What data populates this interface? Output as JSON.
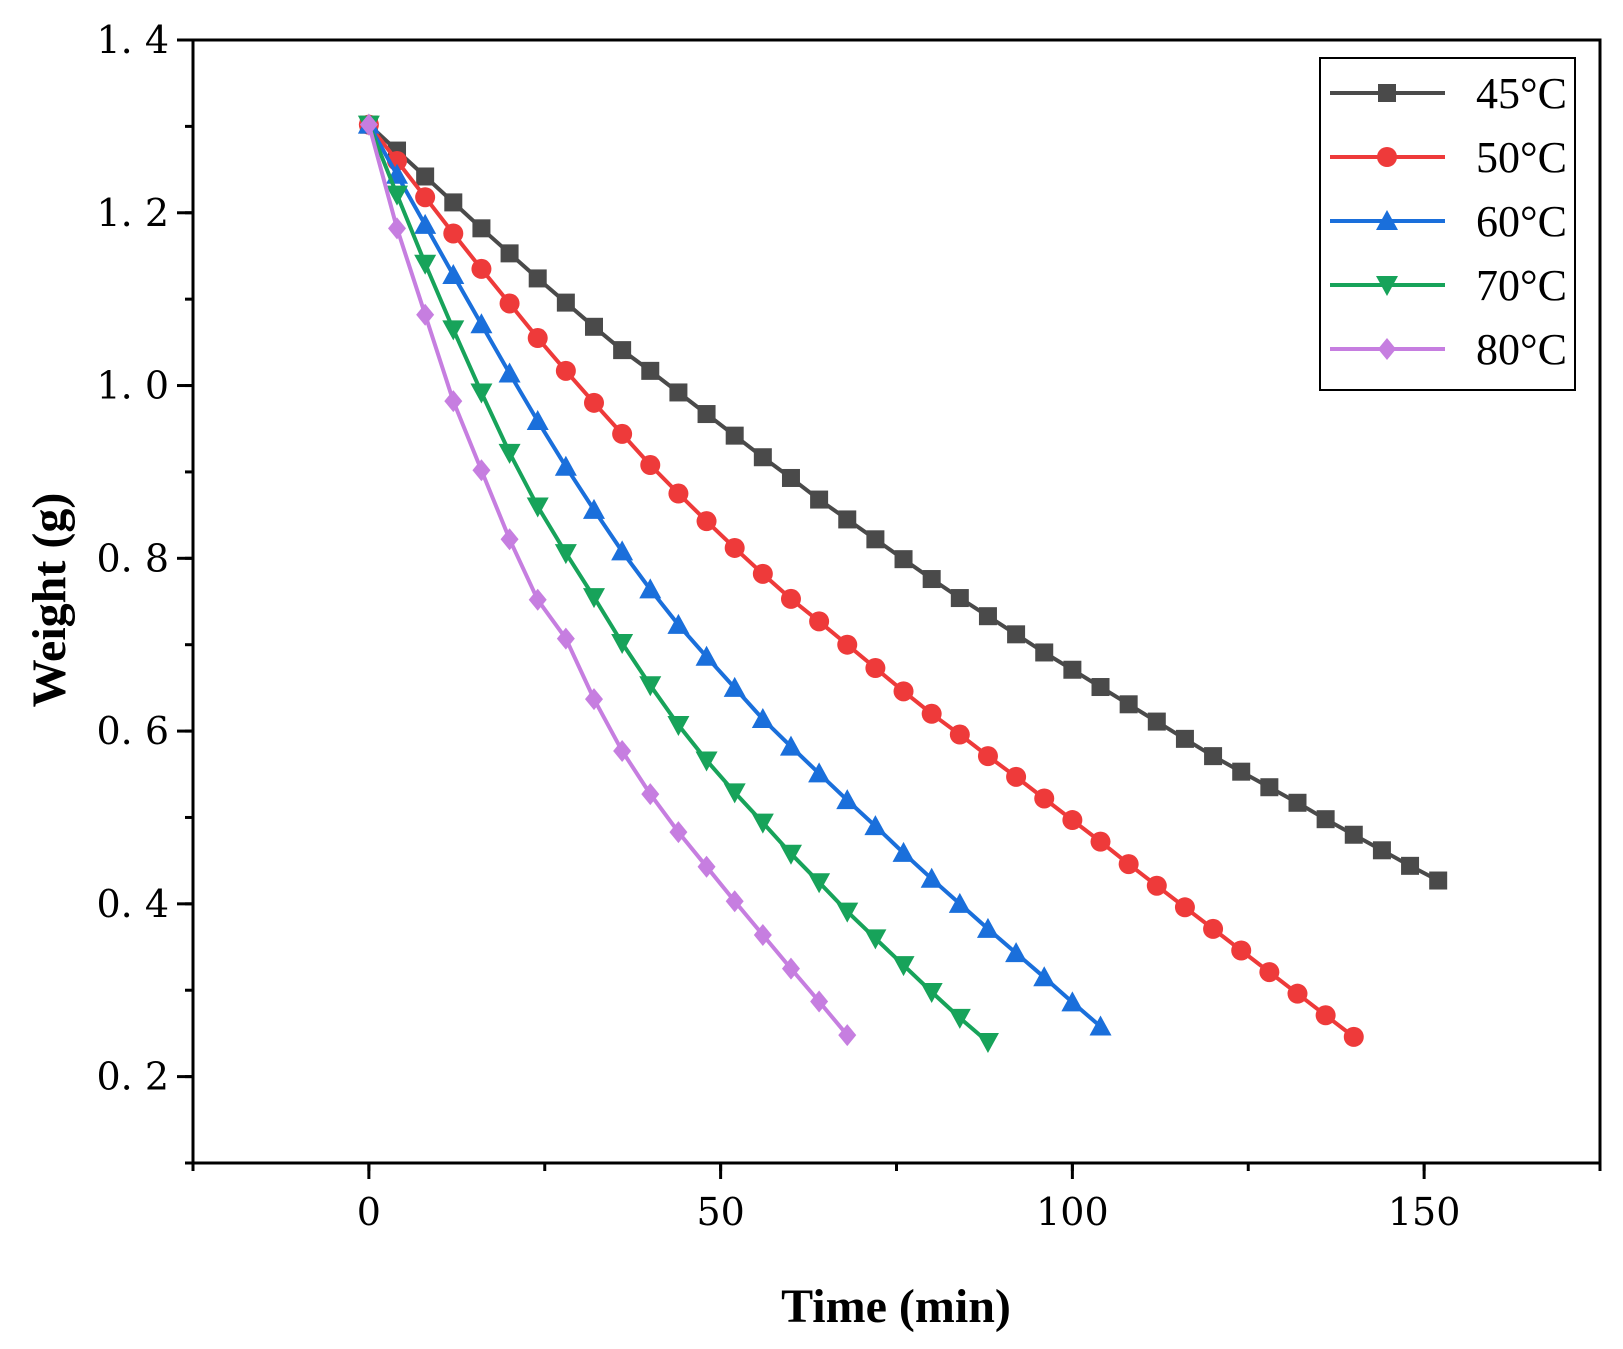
{
  "chart_data": {
    "type": "line",
    "title": "",
    "xlabel": "Time (min)",
    "ylabel": "Weight (g)",
    "xlim": [
      -25,
      175
    ],
    "ylim": [
      0.1,
      1.4
    ],
    "xticks": [
      0,
      50,
      100,
      150
    ],
    "xtick_labels": [
      "0",
      "50",
      "100",
      "150"
    ],
    "yticks": [
      0.2,
      0.4,
      0.6,
      0.8,
      1.0,
      1.2,
      1.4
    ],
    "ytick_labels": [
      "0. 2",
      "0. 4",
      "0. 6",
      "0. 8",
      "1. 0",
      "1. 2",
      "1. 4"
    ],
    "grid": false,
    "legend_position": "top-right",
    "series": [
      {
        "name": "45°C",
        "color": "#4a4a4a",
        "marker": "square",
        "x": [
          0,
          4,
          8,
          12,
          16,
          20,
          24,
          28,
          32,
          36,
          40,
          44,
          48,
          52,
          56,
          60,
          64,
          68,
          72,
          76,
          80,
          84,
          88,
          92,
          96,
          100,
          104,
          108,
          112,
          116,
          120,
          124,
          128,
          132,
          136,
          140,
          144,
          148,
          152
        ],
        "values": [
          1.302,
          1.272,
          1.242,
          1.212,
          1.182,
          1.153,
          1.124,
          1.096,
          1.068,
          1.041,
          1.017,
          0.992,
          0.967,
          0.942,
          0.917,
          0.893,
          0.868,
          0.845,
          0.822,
          0.799,
          0.776,
          0.754,
          0.733,
          0.712,
          0.691,
          0.671,
          0.651,
          0.631,
          0.611,
          0.591,
          0.571,
          0.553,
          0.535,
          0.517,
          0.498,
          0.48,
          0.462,
          0.444,
          0.427
        ]
      },
      {
        "name": "50°C",
        "color": "#ee3a3a",
        "marker": "circle",
        "x": [
          0,
          4,
          8,
          12,
          16,
          20,
          24,
          28,
          32,
          36,
          40,
          44,
          48,
          52,
          56,
          60,
          64,
          68,
          72,
          76,
          80,
          84,
          88,
          92,
          96,
          100,
          104,
          108,
          112,
          116,
          120,
          124,
          128,
          132,
          136,
          140
        ],
        "values": [
          1.302,
          1.26,
          1.218,
          1.176,
          1.135,
          1.095,
          1.055,
          1.017,
          0.98,
          0.944,
          0.908,
          0.875,
          0.843,
          0.812,
          0.782,
          0.753,
          0.727,
          0.7,
          0.673,
          0.646,
          0.62,
          0.596,
          0.571,
          0.547,
          0.522,
          0.497,
          0.472,
          0.446,
          0.421,
          0.396,
          0.371,
          0.346,
          0.321,
          0.296,
          0.271,
          0.246
        ]
      },
      {
        "name": "60°C",
        "color": "#1a6fdb",
        "marker": "triangle-up",
        "x": [
          0,
          4,
          8,
          12,
          16,
          20,
          24,
          28,
          32,
          36,
          40,
          44,
          48,
          52,
          56,
          60,
          64,
          68,
          72,
          76,
          80,
          84,
          88,
          92,
          96,
          100,
          104
        ],
        "values": [
          1.302,
          1.244,
          1.186,
          1.128,
          1.071,
          1.014,
          0.959,
          0.906,
          0.856,
          0.808,
          0.764,
          0.723,
          0.686,
          0.65,
          0.614,
          0.582,
          0.551,
          0.52,
          0.49,
          0.459,
          0.429,
          0.4,
          0.371,
          0.343,
          0.315,
          0.286,
          0.258
        ]
      },
      {
        "name": "70°C",
        "color": "#17a35a",
        "marker": "triangle-down",
        "x": [
          0,
          4,
          8,
          12,
          16,
          20,
          24,
          28,
          32,
          36,
          40,
          44,
          48,
          52,
          56,
          60,
          64,
          68,
          72,
          76,
          80,
          84,
          88
        ],
        "values": [
          1.302,
          1.221,
          1.141,
          1.065,
          0.992,
          0.922,
          0.86,
          0.806,
          0.755,
          0.702,
          0.653,
          0.607,
          0.566,
          0.529,
          0.494,
          0.458,
          0.425,
          0.391,
          0.36,
          0.329,
          0.298,
          0.268,
          0.24
        ]
      },
      {
        "name": "80°C",
        "color": "#c67ee0",
        "marker": "diamond",
        "x": [
          0,
          4,
          8,
          12,
          16,
          20,
          24,
          28,
          32,
          36,
          40,
          44,
          48,
          52,
          56,
          60,
          64,
          68
        ],
        "values": [
          1.302,
          1.182,
          1.082,
          0.982,
          0.902,
          0.822,
          0.752,
          0.707,
          0.637,
          0.577,
          0.527,
          0.483,
          0.443,
          0.403,
          0.364,
          0.325,
          0.287,
          0.248
        ]
      }
    ]
  }
}
